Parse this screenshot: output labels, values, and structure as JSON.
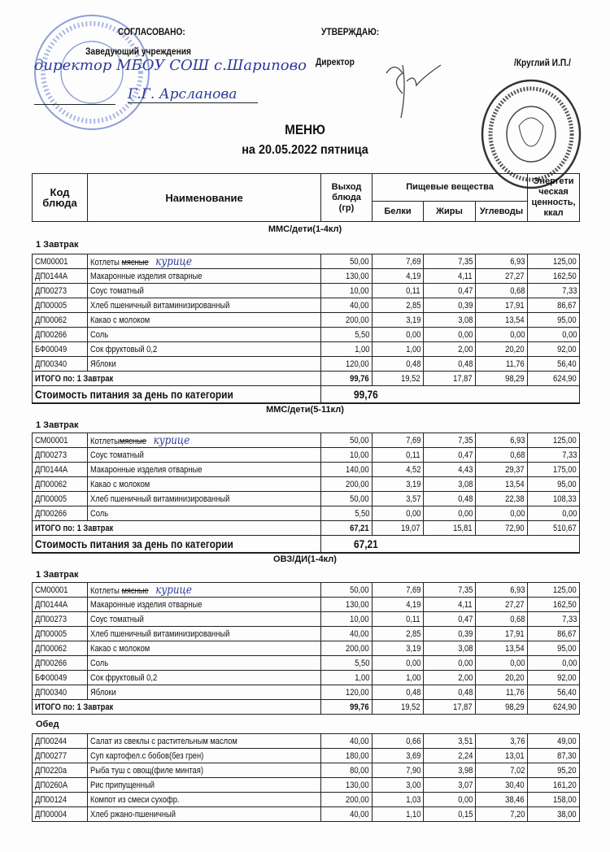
{
  "header": {
    "agreed_label": "СОГЛАСОВАНО:",
    "agreed_role": "Заведующий  учреждения",
    "agreed_hand_role": "директор МБОУ СОШ с.Шарипово",
    "agreed_hand_name": "Г.Г. Арсланова",
    "approve_label": "УТВЕРЖДАЮ:",
    "approve_role": "Директор",
    "approve_name": "/Круглий И.П./",
    "title": "МЕНЮ",
    "subtitle": "на 20.05.2022  пятница"
  },
  "columns": {
    "code": "Код блюда",
    "name": "Наименование",
    "output": "Выход блюда (гр)",
    "nutrients": "Пищевые вещества",
    "protein": "Белки",
    "fat": "Жиры",
    "carbs": "Углеводы",
    "energy": "Энергети ческая ценность, ккал"
  },
  "sections": [
    {
      "title": "ММС/дети(1-4кл)",
      "meals": [
        {
          "name": "1 Завтрак",
          "rows": [
            {
              "code": "СМ00001",
              "name": "Котлеты ",
              "strike": "мясные",
              "hand": "курице",
              "v": [
                "50,00",
                "7,69",
                "7,35",
                "6,93",
                "125,00"
              ]
            },
            {
              "code": "ДП0144А",
              "name": "Макаронные изделия отварные",
              "v": [
                "130,00",
                "4,19",
                "4,11",
                "27,27",
                "162,50"
              ]
            },
            {
              "code": "ДП00273",
              "name": "Соус томатный",
              "v": [
                "10,00",
                "0,11",
                "0,47",
                "0,68",
                "7,33"
              ]
            },
            {
              "code": "ДП00005",
              "name": "Хлеб пшеничный витаминизированный",
              "v": [
                "40,00",
                "2,85",
                "0,39",
                "17,91",
                "86,67"
              ]
            },
            {
              "code": "ДП00062",
              "name": "Какао с молоком",
              "v": [
                "200,00",
                "3,19",
                "3,08",
                "13,54",
                "95,00"
              ]
            },
            {
              "code": "ДП00266",
              "name": "Соль",
              "v": [
                "5,50",
                "0,00",
                "0,00",
                "0,00",
                "0,00"
              ]
            },
            {
              "code": "БФ00049",
              "name": "Сок фруктовый 0,2",
              "v": [
                "1,00",
                "1,00",
                "2,00",
                "20,20",
                "92,00"
              ]
            },
            {
              "code": "ДП00340",
              "name": "Яблоки",
              "v": [
                "120,00",
                "0,48",
                "0,48",
                "11,76",
                "56,40"
              ]
            }
          ],
          "total": {
            "label": "ИТОГО по: 1 Завтрак",
            "v": [
              "99,76",
              "19,52",
              "17,87",
              "98,29",
              "624,90"
            ]
          }
        }
      ],
      "cost": {
        "label": "Стоимость питания за день по категории",
        "value": "99,76"
      }
    },
    {
      "title": "ММС/дети(5-11кл)",
      "meals": [
        {
          "name": "1 Завтрак",
          "rows": [
            {
              "code": "СМ00001",
              "name": "Котлеты",
              "strike": "мясные",
              "hand": "курице",
              "v": [
                "50,00",
                "7,69",
                "7,35",
                "6,93",
                "125,00"
              ]
            },
            {
              "code": "ДП00273",
              "name": "Соус томатный",
              "v": [
                "10,00",
                "0,11",
                "0,47",
                "0,68",
                "7,33"
              ]
            },
            {
              "code": "ДП0144А",
              "name": "Макаронные изделия отварные",
              "v": [
                "140,00",
                "4,52",
                "4,43",
                "29,37",
                "175,00"
              ]
            },
            {
              "code": "ДП00062",
              "name": "Какао с молоком",
              "v": [
                "200,00",
                "3,19",
                "3,08",
                "13,54",
                "95,00"
              ]
            },
            {
              "code": "ДП00005",
              "name": "Хлеб пшеничный витаминизированный",
              "v": [
                "50,00",
                "3,57",
                "0,48",
                "22,38",
                "108,33"
              ]
            },
            {
              "code": "ДП00266",
              "name": "Соль",
              "v": [
                "5,50",
                "0,00",
                "0,00",
                "0,00",
                "0,00"
              ]
            }
          ],
          "total": {
            "label": "ИТОГО по: 1 Завтрак",
            "v": [
              "67,21",
              "19,07",
              "15,81",
              "72,90",
              "510,67"
            ]
          }
        }
      ],
      "cost": {
        "label": "Стоимость питания за день по категории",
        "value": "67,21"
      }
    },
    {
      "title": "ОВЗ/ДИ(1-4кл)",
      "meals": [
        {
          "name": "1 Завтрак",
          "rows": [
            {
              "code": "СМ00001",
              "name": "Котлеты ",
              "strike": "мясные",
              "hand": "курице",
              "v": [
                "50,00",
                "7,69",
                "7,35",
                "6,93",
                "125,00"
              ]
            },
            {
              "code": "ДП0144А",
              "name": "Макаронные изделия отварные",
              "v": [
                "130,00",
                "4,19",
                "4,11",
                "27,27",
                "162,50"
              ]
            },
            {
              "code": "ДП00273",
              "name": "Соус томатный",
              "v": [
                "10,00",
                "0,11",
                "0,47",
                "0,68",
                "7,33"
              ]
            },
            {
              "code": "ДП00005",
              "name": "Хлеб пшеничный витаминизированный",
              "v": [
                "40,00",
                "2,85",
                "0,39",
                "17,91",
                "86,67"
              ]
            },
            {
              "code": "ДП00062",
              "name": "Какао с молоком",
              "v": [
                "200,00",
                "3,19",
                "3,08",
                "13,54",
                "95,00"
              ]
            },
            {
              "code": "ДП00266",
              "name": "Соль",
              "v": [
                "5,50",
                "0,00",
                "0,00",
                "0,00",
                "0,00"
              ]
            },
            {
              "code": "БФ00049",
              "name": "Сок фруктовый 0,2",
              "v": [
                "1,00",
                "1,00",
                "2,00",
                "20,20",
                "92,00"
              ]
            },
            {
              "code": "ДП00340",
              "name": "Яблоки",
              "v": [
                "120,00",
                "0,48",
                "0,48",
                "11,76",
                "56,40"
              ]
            }
          ],
          "total": {
            "label": "ИТОГО по: 1 Завтрак",
            "v": [
              "99,76",
              "19,52",
              "17,87",
              "98,29",
              "624,90"
            ]
          }
        },
        {
          "name": "Обед",
          "rows": [
            {
              "code": "ДП00244",
              "name": "Салат из свеклы с растительным маслом",
              "v": [
                "40,00",
                "0,66",
                "3,51",
                "3,76",
                "49,00"
              ]
            },
            {
              "code": "ДП00277",
              "name": "Суп картофел.с бобов(без грен)",
              "v": [
                "180,00",
                "3,69",
                "2,24",
                "13,01",
                "87,30"
              ]
            },
            {
              "code": "ДП0220а",
              "name": "Рыба туш с овощ(филе минтая)",
              "v": [
                "80,00",
                "7,90",
                "3,98",
                "7,02",
                "95,20"
              ]
            },
            {
              "code": "ДП0260А",
              "name": "Рис припущенный",
              "v": [
                "130,00",
                "3,00",
                "3,07",
                "30,40",
                "161,20"
              ]
            },
            {
              "code": "ДП00124",
              "name": "Компот из смеси сухофр.",
              "v": [
                "200,00",
                "1,03",
                "0,00",
                "38,46",
                "158,00"
              ]
            },
            {
              "code": "ДП00004",
              "name": "Хлеб ржано-пшеничный",
              "v": [
                "40,00",
                "1,10",
                "0,15",
                "7,20",
                "38,00"
              ]
            }
          ]
        }
      ]
    }
  ],
  "colors": {
    "ink": "#111111",
    "handwriting": "#2a3a9a",
    "stamp_blue": "#6f86c8",
    "stamp_dark": "#333333"
  }
}
